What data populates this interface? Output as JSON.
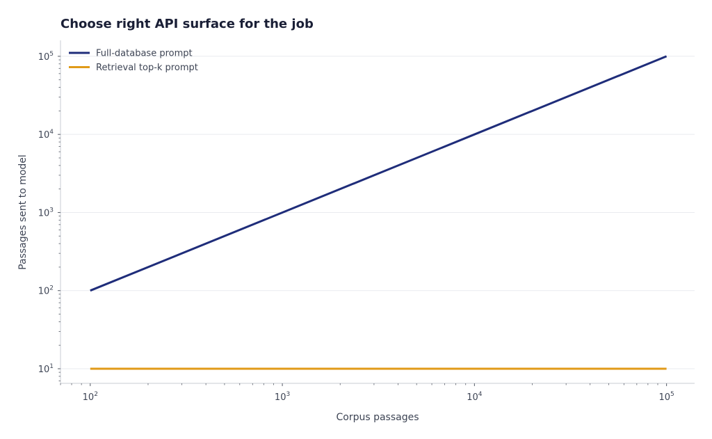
{
  "chart_data": {
    "type": "line",
    "title": "Choose right API surface for the job",
    "xlabel": "Corpus passages",
    "ylabel": "Passages sent to model",
    "xscale": "log",
    "yscale": "log",
    "xlim": [
      70,
      140000
    ],
    "ylim": [
      6.5,
      160000
    ],
    "x_ticks": [
      {
        "base": "10",
        "exp": "2",
        "value": 100
      },
      {
        "base": "10",
        "exp": "3",
        "value": 1000
      },
      {
        "base": "10",
        "exp": "4",
        "value": 10000
      },
      {
        "base": "10",
        "exp": "5",
        "value": 100000
      }
    ],
    "y_ticks": [
      {
        "base": "10",
        "exp": "1",
        "value": 10
      },
      {
        "base": "10",
        "exp": "2",
        "value": 100
      },
      {
        "base": "10",
        "exp": "3",
        "value": 1000
      },
      {
        "base": "10",
        "exp": "4",
        "value": 10000
      },
      {
        "base": "10",
        "exp": "5",
        "value": 100000
      }
    ],
    "grid": "horizontal",
    "legend_position": "top-left",
    "series": [
      {
        "name": "Full-database prompt",
        "color": "#1f2d7a",
        "x": [
          100,
          1000,
          10000,
          100000
        ],
        "y": [
          100,
          1000,
          10000,
          100000
        ]
      },
      {
        "name": "Retrieval top-k prompt",
        "color": "#e09a18",
        "x": [
          100,
          1000,
          10000,
          100000
        ],
        "y": [
          10,
          10,
          10,
          10
        ]
      }
    ],
    "colors": {
      "grid": "#e9ebef",
      "axis": "#c9ccd3",
      "text": "#3d4454",
      "title": "#1a1f36"
    }
  }
}
